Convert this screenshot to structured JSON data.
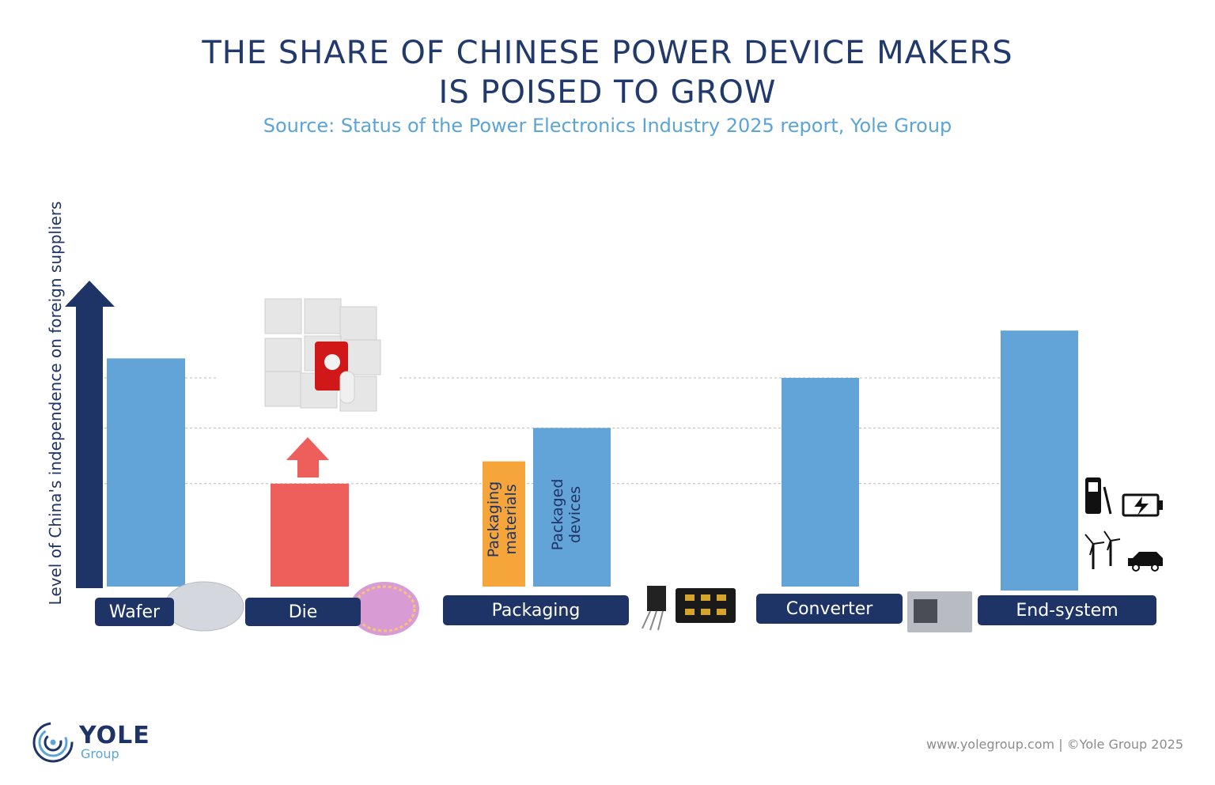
{
  "title_line1": "THE SHARE OF CHINESE POWER DEVICE MAKERS",
  "title_line2": "IS POISED TO GROW",
  "subtitle": "Source: Status of the Power Electronics Industry 2025 report, Yole Group",
  "footer": "www.yolegroup.com | ©Yole Group 2025",
  "logo": {
    "word": "YOLE",
    "sub": "Group"
  },
  "colors": {
    "blue": "#62a3d8",
    "red": "#ee5f5b",
    "orange": "#f5a53a",
    "navy": "#1f3466"
  },
  "chart_data": {
    "type": "bar",
    "ylabel": "Level of China's independence on foreign suppliers",
    "categories": [
      "Wafer",
      "Die",
      "Packaging",
      "Converter",
      "End-system"
    ],
    "bars": [
      {
        "category": "Wafer",
        "value": 0.82,
        "color": "blue"
      },
      {
        "category": "Die",
        "value": 0.37,
        "color": "red",
        "growth_arrow": true
      },
      {
        "category": "Packaging",
        "series": "Packaging materials",
        "value": 0.45,
        "color": "orange"
      },
      {
        "category": "Packaging",
        "series": "Packaged devices",
        "value": 0.57,
        "color": "blue"
      },
      {
        "category": "Converter",
        "value": 0.75,
        "color": "blue"
      },
      {
        "category": "End-system",
        "value": 0.92,
        "color": "blue"
      }
    ],
    "bar_labels": {
      "materials": "Packaging materials",
      "devices": "Packaged devices"
    },
    "gridlines": [
      0.37,
      0.57,
      0.75
    ]
  }
}
